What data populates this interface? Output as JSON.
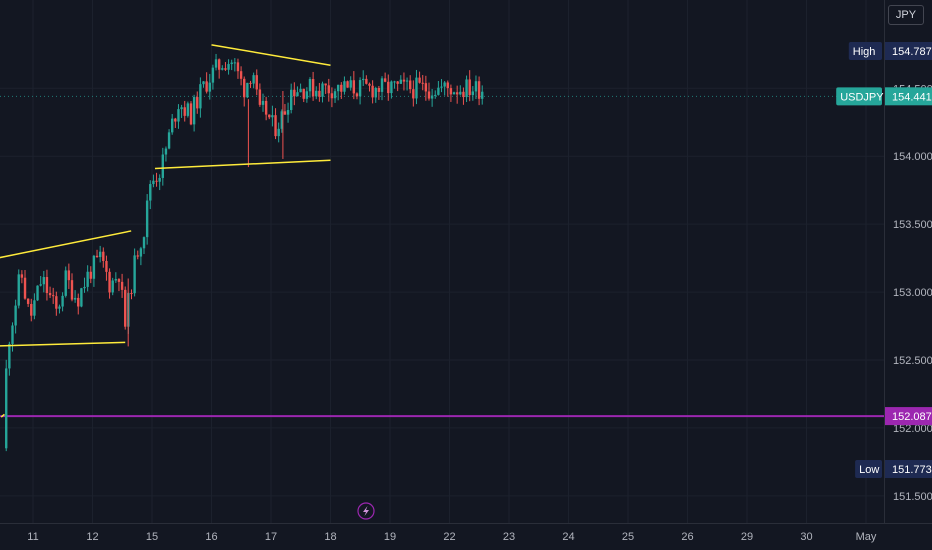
{
  "currency_button": {
    "label": "JPY"
  },
  "price_tags": {
    "high": {
      "label": "High",
      "value": "154.787"
    },
    "current": {
      "label": "USDJPY",
      "value": "154.441"
    },
    "level": {
      "value": "152.087"
    },
    "low": {
      "label": "Low",
      "value": "151.773"
    }
  },
  "colors": {
    "background": "#131722",
    "grid": "#1c212d",
    "up_candle": "#26a69a",
    "down_candle": "#ef5350",
    "trendline": "#ffeb3b",
    "level_line": "#9c27b0",
    "label_bg": "#1e2a52",
    "current_tag": "#26a69a"
  },
  "icons": {
    "event_marker": "lightning-bolt-icon"
  },
  "chart_data": {
    "type": "candlestick",
    "symbol": "USDJPY",
    "ylim": [
      151.3,
      155.15
    ],
    "y_ticks": [
      {
        "value": 151.5,
        "label": "151.500"
      },
      {
        "value": 152.0,
        "label": "152.000"
      },
      {
        "value": 152.5,
        "label": "152.500"
      },
      {
        "value": 153.0,
        "label": "153.000"
      },
      {
        "value": 153.5,
        "label": "153.500"
      },
      {
        "value": 154.0,
        "label": "154.000"
      },
      {
        "value": 154.5,
        "label": "154.500"
      }
    ],
    "x_ticks": [
      "11",
      "12",
      "15",
      "16",
      "17",
      "18",
      "19",
      "22",
      "23",
      "24",
      "25",
      "26",
      "29",
      "30",
      "May"
    ],
    "session_range": [
      10.55,
      18.62
    ],
    "anchors": [
      [
        10.55,
        151.85
      ],
      [
        10.62,
        152.6
      ],
      [
        10.75,
        152.9
      ],
      [
        10.85,
        153.15
      ],
      [
        11.0,
        152.8
      ],
      [
        11.2,
        153.1
      ],
      [
        11.45,
        152.85
      ],
      [
        11.6,
        153.1
      ],
      [
        11.8,
        152.95
      ],
      [
        12.0,
        153.15
      ],
      [
        12.2,
        153.25
      ],
      [
        12.35,
        153.05
      ],
      [
        12.5,
        153.15
      ],
      [
        12.6,
        152.75
      ],
      [
        12.7,
        153.05
      ],
      [
        12.8,
        153.3
      ],
      [
        12.95,
        153.5
      ],
      [
        13.0,
        153.8
      ],
      [
        13.2,
        153.9
      ],
      [
        13.4,
        154.25
      ],
      [
        13.5,
        154.4
      ],
      [
        13.7,
        154.3
      ],
      [
        13.9,
        154.5
      ],
      [
        14.05,
        154.6
      ],
      [
        14.25,
        154.7
      ],
      [
        14.4,
        154.7
      ],
      [
        14.6,
        154.5
      ],
      [
        14.75,
        154.65
      ],
      [
        14.85,
        154.3
      ],
      [
        14.95,
        154.35
      ],
      [
        15.1,
        154.2
      ],
      [
        15.25,
        154.3
      ],
      [
        15.4,
        154.5
      ]
    ],
    "trendlines": [
      {
        "start": [
          10.02,
          152.08
        ],
        "end": [
          10.52,
          152.1
        ]
      },
      {
        "start": [
          10.15,
          152.6
        ],
        "end": [
          12.55,
          152.63
        ]
      },
      {
        "start": [
          10.4,
          153.25
        ],
        "end": [
          12.65,
          153.45
        ]
      },
      {
        "start": [
          13.05,
          153.91
        ],
        "end": [
          16.0,
          153.97
        ]
      },
      {
        "start": [
          14.0,
          154.82
        ],
        "end": [
          16.0,
          154.67
        ]
      }
    ],
    "horizontal_levels": [
      152.087
    ],
    "high": 154.787,
    "low": 151.773,
    "last": 154.441
  }
}
